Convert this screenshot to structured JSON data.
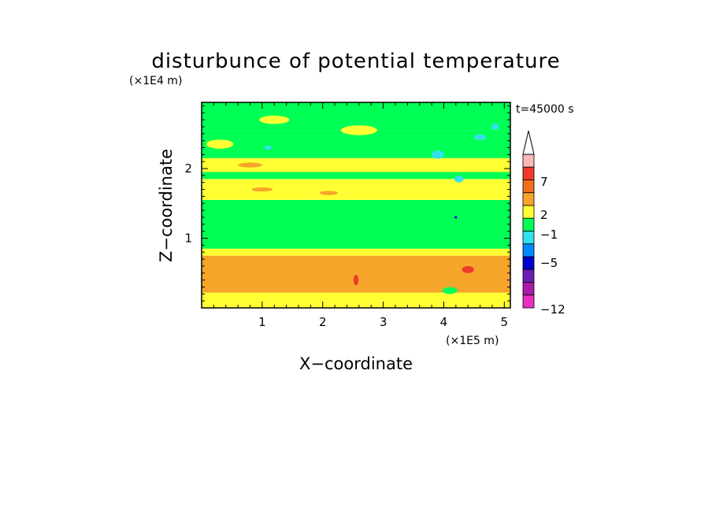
{
  "chart_data": {
    "type": "heatmap",
    "title": "disturbunce of potential temperature",
    "xlabel": "X−coordinate",
    "ylabel": "Z−coordinate",
    "x_unit": "(×1E5 m)",
    "y_unit": "(×1E4 m)",
    "time_label": "t=45000 s",
    "xlim": [
      0,
      5.1
    ],
    "ylim": [
      0,
      2.95
    ],
    "x_ticks": [
      1,
      2,
      3,
      4,
      5
    ],
    "y_ticks": [
      1,
      2
    ],
    "colorbar": {
      "labels": [
        "7",
        "2",
        "−1",
        "−5",
        "−12"
      ],
      "colors": [
        "#f7b9b9",
        "#ee3a2a",
        "#ef6e1c",
        "#f6a52b",
        "#ffff33",
        "#00ff55",
        "#33e1ee",
        "#0088ff",
        "#0000cc",
        "#6a1fb3",
        "#a81aa8",
        "#e82fc0"
      ],
      "extend": "max"
    },
    "bands": [
      {
        "z": [
          0.0,
          0.22
        ],
        "color": "#ffff33"
      },
      {
        "z": [
          0.22,
          0.75
        ],
        "color": "#f6a52b"
      },
      {
        "z": [
          0.75,
          0.85
        ],
        "color": "#ffff33"
      },
      {
        "z": [
          0.85,
          1.55
        ],
        "color": "#00ff55"
      },
      {
        "z": [
          1.55,
          1.85
        ],
        "color": "#ffff33"
      },
      {
        "z": [
          1.85,
          1.95
        ],
        "color": "#00ff55"
      },
      {
        "z": [
          1.95,
          2.15
        ],
        "color": "#ffff33"
      },
      {
        "z": [
          2.15,
          2.55
        ],
        "color": "#00ff55"
      },
      {
        "z": [
          2.55,
          2.95
        ],
        "color": "#00ff55"
      }
    ],
    "features": [
      {
        "x": 0.3,
        "z": 2.35,
        "w": 0.45,
        "h": 0.13,
        "color": "#ffff33"
      },
      {
        "x": 1.2,
        "z": 2.7,
        "w": 0.5,
        "h": 0.12,
        "color": "#ffff33"
      },
      {
        "x": 2.6,
        "z": 2.55,
        "w": 0.6,
        "h": 0.14,
        "color": "#ffff33"
      },
      {
        "x": 1.0,
        "z": 1.7,
        "w": 0.35,
        "h": 0.06,
        "color": "#f6a52b"
      },
      {
        "x": 2.1,
        "z": 1.65,
        "w": 0.3,
        "h": 0.06,
        "color": "#f6a52b"
      },
      {
        "x": 0.8,
        "z": 2.05,
        "w": 0.4,
        "h": 0.07,
        "color": "#f6a52b"
      },
      {
        "x": 3.9,
        "z": 2.2,
        "w": 0.2,
        "h": 0.12,
        "color": "#33e1ee"
      },
      {
        "x": 4.25,
        "z": 1.85,
        "w": 0.15,
        "h": 0.1,
        "color": "#33e1ee"
      },
      {
        "x": 4.6,
        "z": 2.45,
        "w": 0.2,
        "h": 0.08,
        "color": "#33e1ee"
      },
      {
        "x": 1.1,
        "z": 2.3,
        "w": 0.12,
        "h": 0.06,
        "color": "#33e1ee"
      },
      {
        "x": 4.85,
        "z": 2.6,
        "w": 0.12,
        "h": 0.09,
        "color": "#33e1ee"
      },
      {
        "x": 4.2,
        "z": 1.3,
        "w": 0.04,
        "h": 0.04,
        "color": "#0000cc"
      },
      {
        "x": 4.4,
        "z": 0.55,
        "w": 0.2,
        "h": 0.1,
        "color": "#ee3a2a"
      },
      {
        "x": 2.55,
        "z": 0.4,
        "w": 0.08,
        "h": 0.15,
        "color": "#ee3a2a"
      },
      {
        "x": 4.55,
        "z": 0.35,
        "w": 0.12,
        "h": 0.12,
        "color": "#f6a52b"
      },
      {
        "x": 4.1,
        "z": 0.25,
        "w": 0.25,
        "h": 0.1,
        "color": "#00ff55"
      },
      {
        "x": 1.95,
        "z": 0.95,
        "w": 0.9,
        "h": 0.06,
        "color": "#00ff55"
      },
      {
        "x": 4.6,
        "z": 1.05,
        "w": 0.35,
        "h": 0.08,
        "color": "#00ff55"
      }
    ]
  }
}
